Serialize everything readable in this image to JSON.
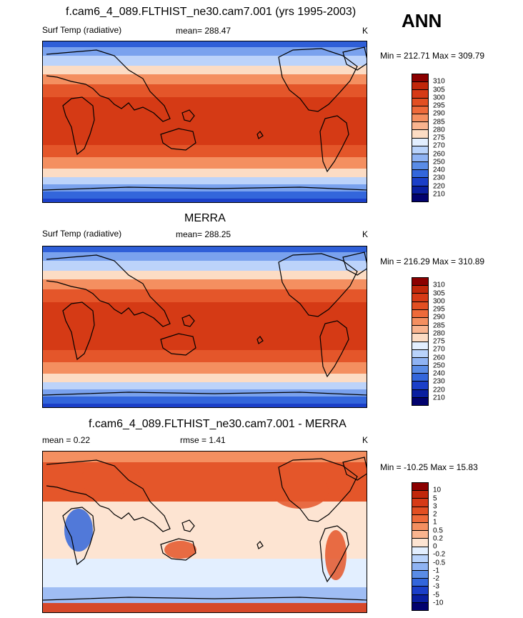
{
  "season": "ANN",
  "panels": [
    {
      "title": "f.cam6_4_089.FLTHIST_ne30.cam7.001 (yrs 1995-2003)",
      "left_label": "Surf Temp (radiative)",
      "center_label": "mean= 288.47",
      "units": "K",
      "minmax": "Min = 212.71 Max = 309.79",
      "colorbar_labels": [
        "310",
        "305",
        "300",
        "295",
        "290",
        "285",
        "280",
        "275",
        "270",
        "260",
        "250",
        "240",
        "230",
        "220",
        "210"
      ],
      "colors": [
        "#8b0000",
        "#c1270a",
        "#d63a16",
        "#e24f22",
        "#ee6a3a",
        "#f48f60",
        "#f9b48f",
        "#fcdcc4",
        "#e3efff",
        "#b9d3fb",
        "#8fb3f3",
        "#5a8ce6",
        "#3366db",
        "#1b3fc8",
        "#0a1fa0",
        "#02026e"
      ]
    },
    {
      "title": "MERRA",
      "left_label": "Surf Temp (radiative)",
      "center_label": "mean= 288.25",
      "units": "K",
      "minmax": "Min = 216.29 Max = 310.89",
      "colorbar_labels": [
        "310",
        "305",
        "300",
        "295",
        "290",
        "285",
        "280",
        "275",
        "270",
        "260",
        "250",
        "240",
        "230",
        "220",
        "210"
      ],
      "colors": [
        "#8b0000",
        "#c1270a",
        "#d63a16",
        "#e24f22",
        "#ee6a3a",
        "#f48f60",
        "#f9b48f",
        "#fcdcc4",
        "#e3efff",
        "#b9d3fb",
        "#8fb3f3",
        "#5a8ce6",
        "#3366db",
        "#1b3fc8",
        "#0a1fa0",
        "#02026e"
      ]
    },
    {
      "title": "f.cam6_4_089.FLTHIST_ne30.cam7.001 - MERRA",
      "left_label": "mean =  0.22",
      "center_label": "rmse =  1.41",
      "units": "K",
      "minmax": "Min = -10.25 Max =  15.83",
      "colorbar_labels": [
        "10",
        "5",
        "3",
        "2",
        "1",
        "0.5",
        "0.2",
        "0",
        "-0.2",
        "-0.5",
        "-1",
        "-2",
        "-3",
        "-5",
        "-10"
      ],
      "colors": [
        "#8b0000",
        "#c1270a",
        "#d63a16",
        "#e24f22",
        "#ee6a3a",
        "#f48f60",
        "#f9b48f",
        "#fde4d2",
        "#e3efff",
        "#b9d3fb",
        "#8fb3f3",
        "#5a8ce6",
        "#3366db",
        "#1b3fc8",
        "#0a1fa0",
        "#02026e"
      ]
    }
  ]
}
